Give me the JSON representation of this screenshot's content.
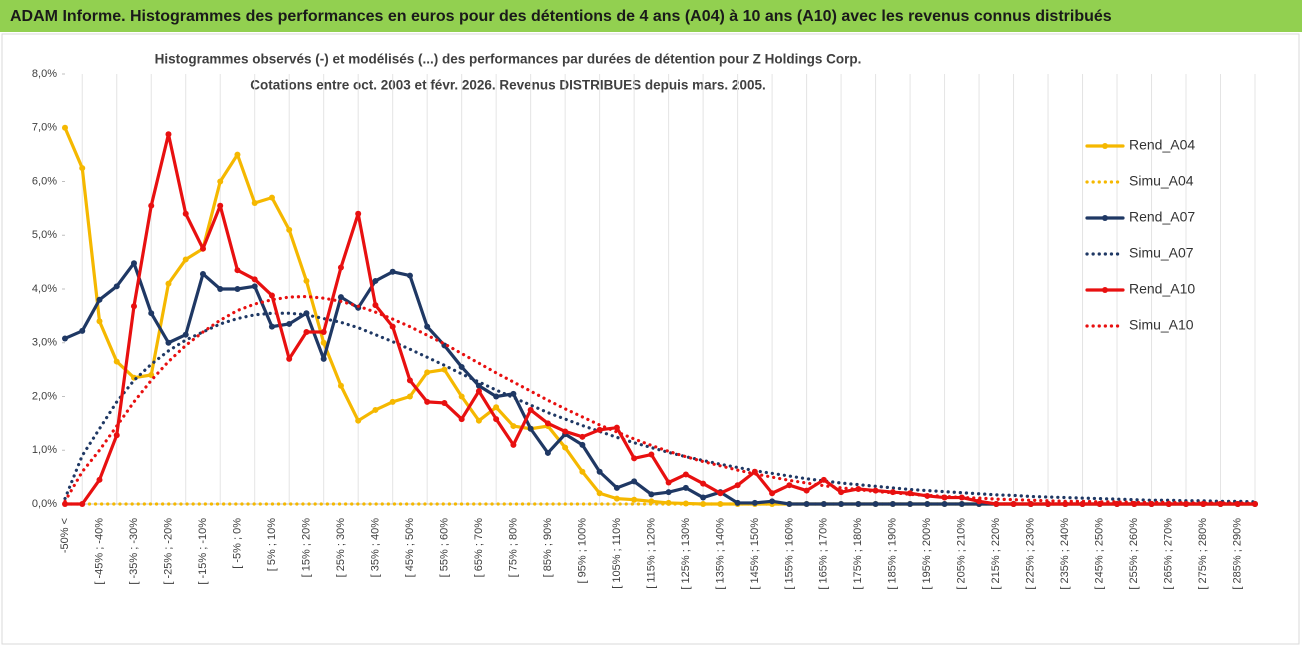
{
  "chart_data": {
    "type": "line",
    "header": "ADAM Informe. Histogrammes des performances en euros pour des détentions de 4 ans (A04) à 10 ans (A10) avec les revenus connus distribués",
    "title": "Histogrammes observés (-) et modélisés (...) des performances par durées de détention pour Z Holdings Corp.",
    "subtitle": "Cotations entre oct. 2003 et févr. 2026. Revenus DISTRIBUES depuis mars. 2005.",
    "categories": [
      "-50% <",
      null,
      "[ -45% ; -40%",
      null,
      "[ -35% ; -30%",
      null,
      "[ -25% ; -20%",
      null,
      "[ -15% ; -10%",
      null,
      "[ -5% ; 0%",
      null,
      "[ 5% ; 10%",
      null,
      "[ 15% ; 20%",
      null,
      "[ 25% ; 30%",
      null,
      "[ 35% ; 40%",
      null,
      "[ 45% ; 50%",
      null,
      "[ 55% ; 60%",
      null,
      "[ 65% ; 70%",
      null,
      "[ 75% ; 80%",
      null,
      "[ 85% ; 90%",
      null,
      "[ 95% ; 100%",
      null,
      "[ 105% ; 110%",
      null,
      "[ 115% ; 120%",
      null,
      "[ 125% ; 130%",
      null,
      "[ 135% ; 140%",
      null,
      "[ 145% ; 150%",
      null,
      "[ 155% ; 160%",
      null,
      "[ 165% ; 170%",
      null,
      "[ 175% ; 180%",
      null,
      "[ 185% ; 190%",
      null,
      "[ 195% ; 200%",
      null,
      "[ 205% ; 210%",
      null,
      "[ 215% ; 220%",
      null,
      "[ 225% ; 230%",
      null,
      "[ 235% ; 240%",
      null,
      "[ 245% ; 250%",
      null,
      "[ 255% ; 260%",
      null,
      "[ 265% ; 270%",
      null,
      "[ 275% ; 280%",
      null,
      "[ 285% ; 290%",
      null
    ],
    "series": [
      {
        "name": "Rend_A04",
        "color": "#f5b800",
        "line_style": "solid",
        "markers": true,
        "values": [
          7.0,
          6.25,
          3.4,
          2.65,
          2.35,
          2.4,
          4.1,
          4.55,
          4.75,
          6.0,
          6.5,
          5.6,
          5.7,
          5.1,
          4.15,
          3.0,
          2.2,
          1.55,
          1.75,
          1.9,
          2.0,
          2.45,
          2.5,
          2.0,
          1.55,
          1.8,
          1.45,
          1.4,
          1.45,
          1.05,
          0.6,
          0.2,
          0.1,
          0.08,
          0.05,
          0.02,
          0.01,
          0,
          0,
          0,
          0,
          0,
          0,
          0,
          0,
          0,
          0,
          0,
          0,
          0,
          0,
          0,
          0,
          0,
          0,
          0,
          0,
          0,
          0,
          0,
          0,
          0,
          0,
          0,
          0,
          0,
          0,
          0,
          0,
          0
        ]
      },
      {
        "name": "Simu_A04",
        "color": "#f5b800",
        "line_style": "dotted",
        "markers": false,
        "values": [
          0,
          0,
          0,
          0,
          0,
          0,
          0,
          0,
          0,
          0,
          0,
          0,
          0,
          0,
          0,
          0,
          0,
          0,
          0,
          0,
          0,
          0,
          0,
          0,
          0,
          0,
          0,
          0,
          0,
          0,
          0,
          0,
          0,
          0,
          0,
          0,
          0,
          0,
          0,
          0,
          0,
          0,
          0,
          0,
          0,
          0,
          0,
          0,
          0,
          0,
          0,
          0,
          0,
          0,
          0,
          0,
          0,
          0,
          0,
          0,
          0,
          0,
          0,
          0,
          0,
          0,
          0,
          0,
          0,
          0
        ]
      },
      {
        "name": "Rend_A07",
        "color": "#1f3864",
        "line_style": "solid",
        "markers": true,
        "values": [
          3.08,
          3.22,
          3.8,
          4.05,
          4.48,
          3.55,
          3.0,
          3.15,
          4.28,
          4.0,
          4.0,
          4.05,
          3.3,
          3.35,
          3.55,
          2.7,
          3.85,
          3.65,
          4.15,
          4.32,
          4.25,
          3.3,
          2.95,
          2.55,
          2.2,
          2.0,
          2.05,
          1.4,
          0.95,
          1.3,
          1.1,
          0.6,
          0.3,
          0.42,
          0.18,
          0.22,
          0.3,
          0.12,
          0.22,
          0.02,
          0.02,
          0.05,
          0,
          0,
          0,
          0,
          0,
          0,
          0,
          0,
          0,
          0,
          0,
          0,
          0,
          0,
          0,
          0,
          0,
          0,
          0,
          0,
          0,
          0,
          0,
          0,
          0,
          0,
          0,
          0
        ]
      },
      {
        "name": "Simu_A07",
        "color": "#1f3864",
        "line_style": "dotted",
        "markers": false,
        "values": [
          0.1,
          0.9,
          1.4,
          1.9,
          2.3,
          2.6,
          2.85,
          3.05,
          3.2,
          3.35,
          3.45,
          3.52,
          3.55,
          3.55,
          3.52,
          3.45,
          3.38,
          3.28,
          3.15,
          3.02,
          2.88,
          2.73,
          2.58,
          2.42,
          2.27,
          2.12,
          1.98,
          1.84,
          1.7,
          1.58,
          1.46,
          1.35,
          1.24,
          1.14,
          1.05,
          0.96,
          0.88,
          0.81,
          0.74,
          0.68,
          0.62,
          0.57,
          0.52,
          0.47,
          0.43,
          0.39,
          0.36,
          0.33,
          0.3,
          0.27,
          0.25,
          0.23,
          0.21,
          0.19,
          0.17,
          0.16,
          0.14,
          0.13,
          0.12,
          0.11,
          0.1,
          0.09,
          0.08,
          0.07,
          0.07,
          0.06,
          0.06,
          0.05,
          0.05,
          0.04
        ]
      },
      {
        "name": "Rend_A10",
        "color": "#e81010",
        "line_style": "solid",
        "markers": true,
        "values": [
          0,
          0,
          0.45,
          1.28,
          3.68,
          5.55,
          6.88,
          5.4,
          4.75,
          5.55,
          4.35,
          4.18,
          3.88,
          2.7,
          3.2,
          3.2,
          4.4,
          5.4,
          3.7,
          3.3,
          2.3,
          1.9,
          1.88,
          1.58,
          2.1,
          1.58,
          1.1,
          1.75,
          1.5,
          1.35,
          1.25,
          1.38,
          1.42,
          0.85,
          0.92,
          0.4,
          0.55,
          0.38,
          0.2,
          0.35,
          0.6,
          0.2,
          0.35,
          0.25,
          0.45,
          0.22,
          0.28,
          0.25,
          0.22,
          0.2,
          0.15,
          0.12,
          0.12,
          0.05,
          0,
          0,
          0,
          0,
          0,
          0,
          0,
          0,
          0,
          0,
          0,
          0,
          0,
          0,
          0,
          0
        ]
      },
      {
        "name": "Simu_A10",
        "color": "#e81010",
        "line_style": "dotted",
        "markers": false,
        "values": [
          0.05,
          0.6,
          1.0,
          1.45,
          1.9,
          2.3,
          2.65,
          2.95,
          3.2,
          3.42,
          3.6,
          3.72,
          3.8,
          3.85,
          3.86,
          3.83,
          3.77,
          3.68,
          3.57,
          3.44,
          3.3,
          3.14,
          2.98,
          2.8,
          2.62,
          2.44,
          2.27,
          2.1,
          1.93,
          1.77,
          1.62,
          1.47,
          1.34,
          1.21,
          1.09,
          0.98,
          0.88,
          0.79,
          0.71,
          0.63,
          0.56,
          0.5,
          0.44,
          0.39,
          0.34,
          0.3,
          0.27,
          0.23,
          0.21,
          0.18,
          0.16,
          0.14,
          0.12,
          0.11,
          0.09,
          0.08,
          0.07,
          0.06,
          0.05,
          0.05,
          0.04,
          0.04,
          0.03,
          0.03,
          0.03,
          0.02,
          0.02,
          0.02,
          0.02,
          0.01
        ]
      }
    ],
    "ylim": [
      0,
      8
    ],
    "yticks": [
      {
        "value": 0,
        "label": "0,0%"
      },
      {
        "value": 1,
        "label": "1,0%"
      },
      {
        "value": 2,
        "label": "2,0%"
      },
      {
        "value": 3,
        "label": "3,0%"
      },
      {
        "value": 4,
        "label": "4,0%"
      },
      {
        "value": 5,
        "label": "5,0%"
      },
      {
        "value": 6,
        "label": "6,0%"
      },
      {
        "value": 7,
        "label": "7,0%"
      },
      {
        "value": 8,
        "label": "8,0%"
      }
    ],
    "legend": "right"
  }
}
